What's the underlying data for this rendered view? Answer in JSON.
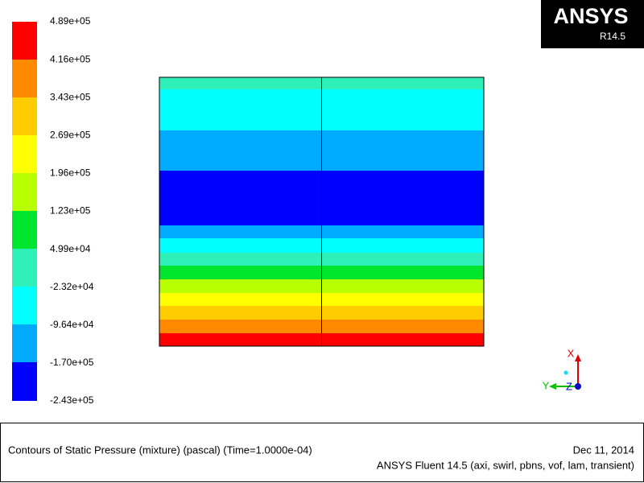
{
  "colorbar": {
    "labels": [
      "4.89e+05",
      "4.16e+05",
      "3.43e+05",
      "2.69e+05",
      "1.96e+05",
      "1.23e+05",
      "4.99e+04",
      "-2.32e+04",
      "-9.64e+04",
      "-1.70e+05",
      "-2.43e+05"
    ]
  },
  "logo": {
    "brand": "ANSYS",
    "release": "R14.5"
  },
  "triad": {
    "x": "X",
    "y": "Y",
    "z": "Z"
  },
  "footer": {
    "description": "Contours of Static Pressure (mixture)  (pascal)  (Time=1.0000e-04)",
    "date": "Dec 11, 2014",
    "solver": "ANSYS Fluent 14.5 (axi, swirl, pbns, vof, lam, transient)"
  }
}
